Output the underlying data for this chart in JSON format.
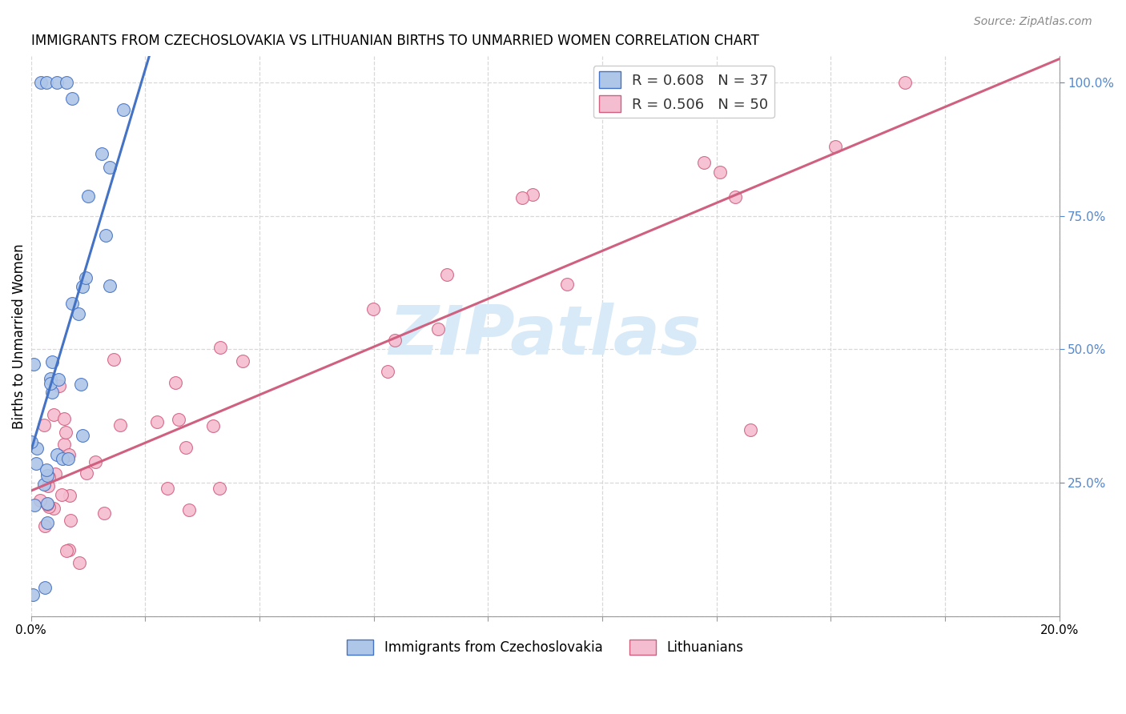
{
  "title": "IMMIGRANTS FROM CZECHOSLOVAKIA VS LITHUANIAN BIRTHS TO UNMARRIED WOMEN CORRELATION CHART",
  "source": "Source: ZipAtlas.com",
  "ylabel": "Births to Unmarried Women",
  "blue_R": "0.608",
  "blue_N": "37",
  "pink_R": "0.506",
  "pink_N": "50",
  "blue_fill_color": "#aec6e8",
  "blue_edge_color": "#4472c4",
  "pink_fill_color": "#f5bdd0",
  "pink_edge_color": "#d06080",
  "background_color": "#ffffff",
  "grid_color": "#d8d8d8",
  "watermark_color": "#d8eaf8",
  "legend_label_blue": "Immigrants from Czechoslovakia",
  "legend_label_pink": "Lithuanians",
  "right_tick_color": "#5588cc",
  "xlim": [
    0.0,
    0.2
  ],
  "ylim": [
    0.0,
    1.05
  ],
  "right_ytick_vals": [
    0.25,
    0.5,
    0.75,
    1.0
  ],
  "right_ytick_labels": [
    "25.0%",
    "50.0%",
    "75.0%",
    "100.0%"
  ]
}
